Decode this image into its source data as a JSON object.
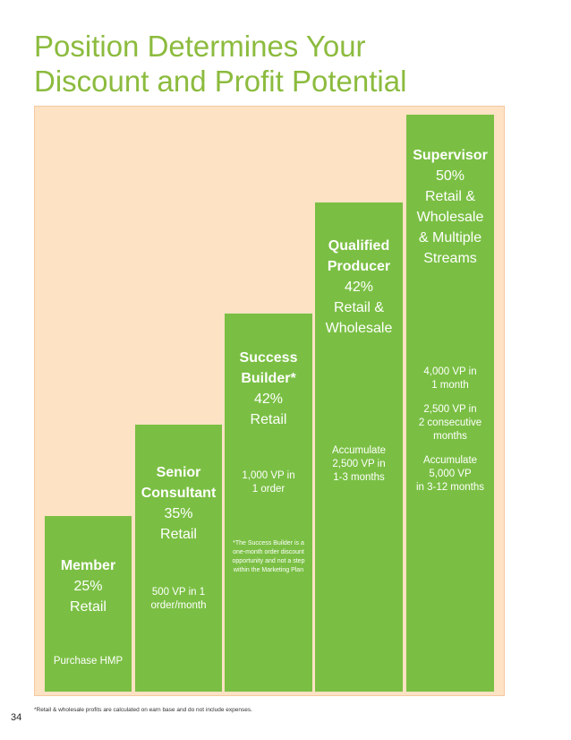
{
  "title_line1": "Position Determines Your",
  "title_line2": "Discount and Profit Potential",
  "colors": {
    "green": "#7abf43",
    "title_green": "#8cbb3e",
    "panel": "#fde2c4"
  },
  "levels": [
    {
      "name": "Member",
      "discount": "25%",
      "benefit": [
        "Retail"
      ],
      "requirement": [
        "Purchase HMP"
      ]
    },
    {
      "name_lines": [
        "Senior",
        "Consultant"
      ],
      "discount": "35%",
      "benefit": [
        "Retail"
      ],
      "requirement": [
        "500 VP in 1",
        "order/month"
      ]
    },
    {
      "name_lines": [
        "Success",
        "Builder*"
      ],
      "discount": "42%",
      "benefit": [
        "Retail"
      ],
      "requirement": [
        "1,000 VP in",
        "1 order"
      ],
      "note": [
        "*The Success Builder is a",
        "one-month order discount",
        "opportunity and not a step",
        "within the Marketing Plan"
      ]
    },
    {
      "name_lines": [
        "Qualified",
        "Producer"
      ],
      "discount": "42%",
      "benefit": [
        "Retail &",
        "Wholesale"
      ],
      "requirement": [
        "Accumulate",
        "2,500 VP in",
        "1-3 months"
      ]
    },
    {
      "name": "Supervisor",
      "discount": "50%",
      "benefit": [
        "Retail &",
        "Wholesale",
        "& Multiple",
        "Streams"
      ],
      "requirement": [
        "4,000 VP in",
        "1 month",
        "",
        "2,500 VP in",
        "2 consecutive",
        "months",
        "",
        "Accumulate",
        "5,000 VP",
        "in 3-12 months"
      ]
    }
  ],
  "page_number": "34",
  "footnote": "*Retail & wholesale profits are calculated on earn base and do not include expenses."
}
